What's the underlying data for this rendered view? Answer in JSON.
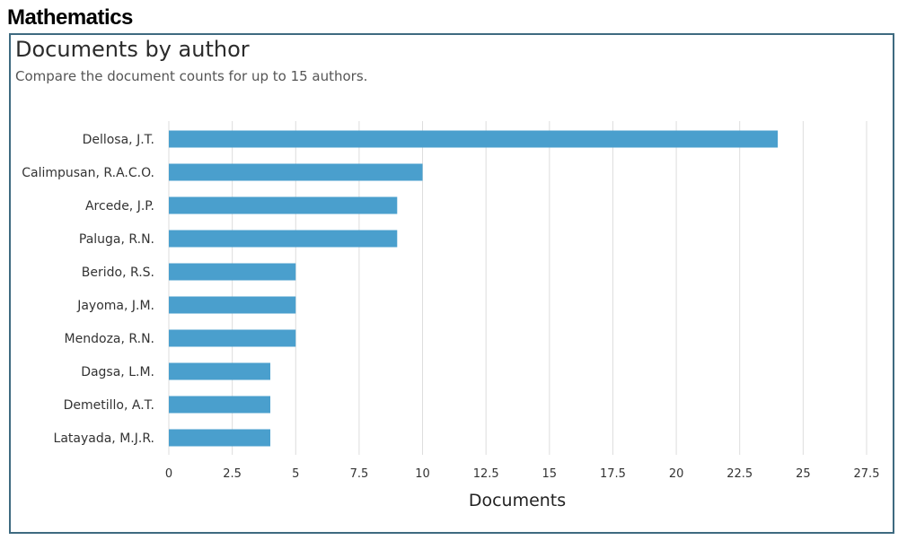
{
  "header": {
    "title": "Mathematics"
  },
  "chart_data": {
    "type": "bar",
    "orientation": "horizontal",
    "title": "Documents by author",
    "subtitle": "Compare the document counts for up to 15 authors.",
    "xlabel": "Documents",
    "ylabel": "",
    "categories": [
      "Dellosa, J.T.",
      "Calimpusan, R.A.C.O.",
      "Arcede, J.P.",
      "Paluga, R.N.",
      "Berido, R.S.",
      "Jayoma, J.M.",
      "Mendoza, R.N.",
      "Dagsa, L.M.",
      "Demetillo, A.T.",
      "Latayada, M.J.R."
    ],
    "values": [
      24,
      10,
      9,
      9,
      5,
      5,
      5,
      4,
      4,
      4
    ],
    "xlim": [
      0,
      27.5
    ],
    "xticks": [
      "0",
      "2.5",
      "5",
      "7.5",
      "10",
      "12.5",
      "15",
      "17.5",
      "20",
      "22.5",
      "25",
      "27.5"
    ],
    "grid": "vertical",
    "legend": "none",
    "bar_color": "#4a9fcd",
    "grid_color": "#dddddd"
  }
}
